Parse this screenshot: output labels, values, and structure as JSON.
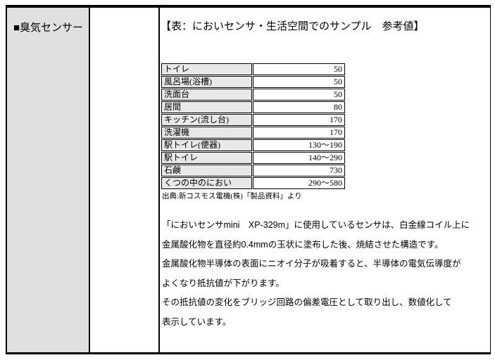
{
  "sidebar": {
    "title": "■臭気センサー"
  },
  "main": {
    "title": "【表：においセンサ・生活空間でのサンプル　参考値】",
    "table": {
      "rows": [
        {
          "label": "トイレ",
          "value": "50"
        },
        {
          "label": "風呂場(浴槽)",
          "value": "50"
        },
        {
          "label": "洗面台",
          "value": "50"
        },
        {
          "label": "居間",
          "value": "80"
        },
        {
          "label": "キッチン(流し台)",
          "value": "170"
        },
        {
          "label": "洗濯機",
          "value": "170"
        },
        {
          "label": "駅トイレ(便器)",
          "value": "130〜190"
        },
        {
          "label": "駅トイレ",
          "value": "140〜290"
        },
        {
          "label": "石鹸",
          "value": "730"
        },
        {
          "label": "くつの中のにおい",
          "value": "290〜580"
        }
      ]
    },
    "source_note": "出典:新コスモス電機(株)「製品資料」より",
    "paragraph": {
      "lines": [
        "「においセンサmini　XP-329m」に使用しているセンサは、白金線コイル上に",
        "金属酸化物を直径約0.4mmの玉状に塗布した後、焼結させた構造です。",
        "金属酸化物半導体の表面にニオイ分子が吸着すると、半導体の電気伝導度が",
        "よくなり抵抗値が下がります。",
        "その抵抗値の変化をブリッジ回路の偏差電圧として取り出し、数値化して",
        "表示しています。"
      ]
    }
  },
  "colors": {
    "border": "#000000",
    "sidebar_bg": "#e0e0e0",
    "table_label_bg": "#e8e8e8"
  }
}
